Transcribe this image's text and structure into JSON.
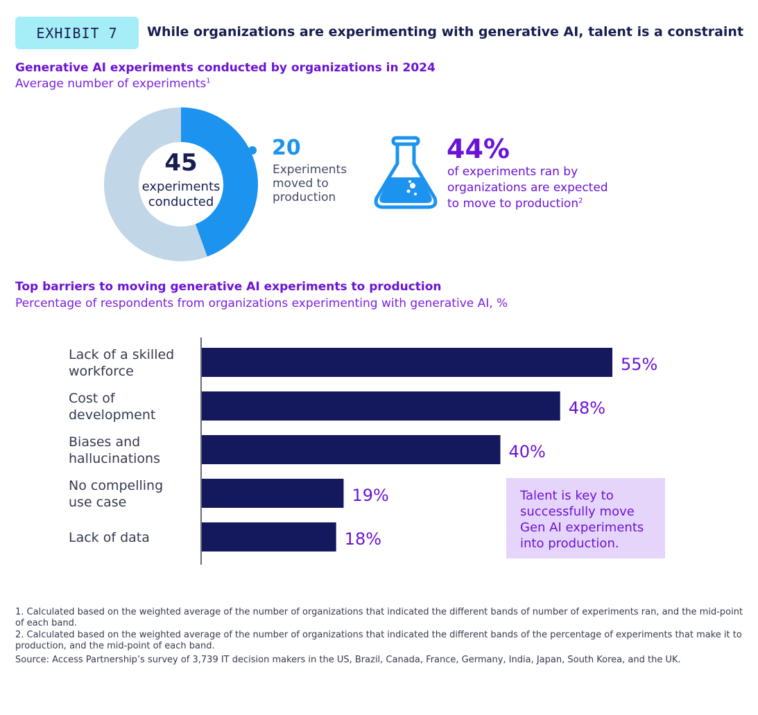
{
  "header": {
    "exhibit_label": "EXHIBIT 7",
    "title": "While organizations are experimenting with generative AI, talent is a constraint"
  },
  "section1": {
    "title": "Generative AI experiments conducted by organizations in 2024",
    "subtitle": "Average number of experiments",
    "subtitle_footnote": "1"
  },
  "donut": {
    "center_value": "45",
    "center_label_line1": "experiments",
    "center_label_line2": "conducted",
    "callout_value": "20",
    "callout_line1": "Experiments",
    "callout_line2": "moved to",
    "callout_line3": "production"
  },
  "stat": {
    "icon": "flask-icon",
    "value": "44%",
    "line1": "of experiments ran by",
    "line2": "organizations are expected",
    "line3": "to move to production",
    "footnote": "2"
  },
  "section2": {
    "title": "Top barriers to moving generative AI experiments to production",
    "subtitle": "Percentage of respondents from organizations experimenting with generative AI, %"
  },
  "talent_box": {
    "text": "Talent is key to successfully move Gen AI experiments into production."
  },
  "footnotes": {
    "note1": "1. Calculated based on the weighted average of the number of organizations that indicated the different bands of number of experiments ran, and the mid-point of each band.",
    "note2": "2. Calculated based on the weighted average of the number of organizations that indicated the different bands of the percentage of experiments that make it to production, and the mid-point of each band.",
    "source": "Source: Access Partnership’s survey of 3,739 IT decision makers in the US, Brazil, Canada, France, Germany, India, Japan, South Korea, and the UK."
  },
  "colors": {
    "bar": "#14195e",
    "value_label": "#6b12d6",
    "donut_remaining": "#c1d6e6",
    "donut_production": "#1b93ef",
    "exhibit_badge": "#a6eef7",
    "talent_box": "#e6d5fb"
  },
  "chart_data": [
    {
      "type": "pie",
      "variant": "donut",
      "total": 45,
      "slices": [
        {
          "label": "Experiments moved to production",
          "value": 20
        },
        {
          "value": 25
        }
      ]
    },
    {
      "type": "bar",
      "orientation": "horizontal",
      "title": "Top barriers to moving generative AI experiments to production",
      "subtitle": "Percentage of respondents from organizations experimenting with generative AI, %",
      "categories": [
        [
          "Lack of a skilled",
          "workforce"
        ],
        [
          "Cost of",
          "development"
        ],
        [
          "Biases and",
          "hallucinations"
        ],
        [
          "No compelling",
          "use case"
        ],
        [
          "Lack of data"
        ]
      ],
      "values": [
        55,
        48,
        40,
        19,
        18
      ],
      "value_labels": [
        "55%",
        "48%",
        "40%",
        "19%",
        "18%"
      ],
      "xlim": [
        0,
        55
      ]
    }
  ]
}
